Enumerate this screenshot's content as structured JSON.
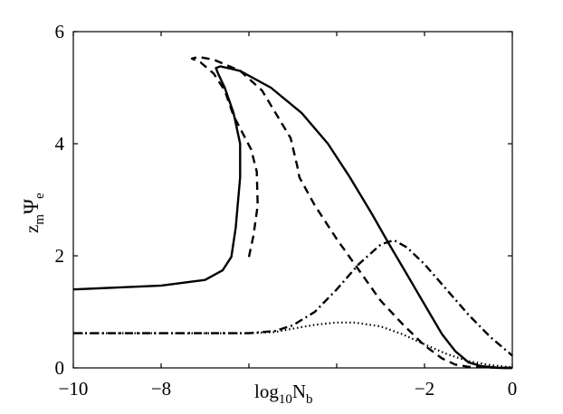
{
  "chart_data": {
    "type": "line",
    "title": "",
    "xlabel": {
      "base": "log",
      "sub1": "10",
      "main": "N",
      "sub2": "b"
    },
    "ylabel": {
      "base": "z",
      "sub1": "m",
      "main": "Ψ",
      "sub2": "e"
    },
    "xlim": [
      -10,
      0
    ],
    "ylim": [
      0,
      6
    ],
    "xticks": [
      {
        "value": -10,
        "label": "−10"
      },
      {
        "value": -8,
        "label": "−8"
      },
      {
        "value": -2,
        "label": "−2"
      },
      {
        "value": 0,
        "label": "0"
      }
    ],
    "yticks": [
      {
        "value": 0,
        "label": "0"
      },
      {
        "value": 2,
        "label": "2"
      },
      {
        "value": 4,
        "label": "4"
      },
      {
        "value": 6,
        "label": "6"
      }
    ],
    "grid": false,
    "legend": "none",
    "series": [
      {
        "style": "solid",
        "x": [
          -10,
          -8,
          -7,
          -6.6,
          -6.4,
          -6.3,
          -6.2,
          -6.2,
          -6.35,
          -6.55,
          -6.7,
          -6.75,
          -6.65,
          -6.2,
          -5.5,
          -4.8,
          -4.2,
          -3.7,
          -3.2,
          -2.8,
          -2.5,
          -2.2,
          -1.9,
          -1.6,
          -1.3,
          -1.0,
          -0.7,
          -0.3,
          0
        ],
        "y": [
          1.4,
          1.47,
          1.57,
          1.74,
          1.98,
          2.5,
          3.4,
          4.0,
          4.55,
          5.0,
          5.25,
          5.35,
          5.38,
          5.3,
          5.0,
          4.55,
          4.0,
          3.4,
          2.75,
          2.2,
          1.8,
          1.4,
          1.0,
          0.6,
          0.3,
          0.1,
          0.03,
          0.0,
          0.0
        ]
      },
      {
        "style": "dashed",
        "x": [
          -6.0,
          -5.9,
          -5.8,
          -5.82,
          -5.95,
          -6.15,
          -6.35,
          -6.55,
          -6.8,
          -7.1,
          -7.3,
          -7.15,
          -6.8,
          -6.2,
          -5.7,
          -5.05,
          -4.9,
          -4.85,
          -4.5,
          -4.0,
          -3.5,
          -3.0,
          -2.5,
          -2.0,
          -1.6,
          -1.3,
          -1.0,
          -0.6,
          -0.3,
          0
        ],
        "y": [
          1.98,
          2.35,
          2.9,
          3.5,
          3.9,
          4.2,
          4.5,
          4.95,
          5.25,
          5.45,
          5.52,
          5.55,
          5.5,
          5.3,
          4.95,
          4.1,
          3.6,
          3.4,
          2.9,
          2.3,
          1.75,
          1.2,
          0.78,
          0.4,
          0.17,
          0.06,
          0.02,
          0.01,
          0.0,
          0.0
        ]
      },
      {
        "style": "dash-dot",
        "x": [
          -10,
          -7,
          -6,
          -5.4,
          -5.0,
          -4.5,
          -4.0,
          -3.5,
          -3.0,
          -2.7,
          -2.4,
          -2.0,
          -1.5,
          -1.0,
          -0.5,
          0
        ],
        "y": [
          0.62,
          0.62,
          0.62,
          0.66,
          0.76,
          1.0,
          1.4,
          1.85,
          2.2,
          2.28,
          2.15,
          1.85,
          1.4,
          0.95,
          0.55,
          0.22
        ]
      },
      {
        "style": "dotted",
        "x": [
          -10,
          -6,
          -5.4,
          -5.0,
          -4.5,
          -4.0,
          -3.6,
          -3.0,
          -2.5,
          -2.0,
          -1.5,
          -1.0,
          -0.5,
          0
        ],
        "y": [
          0.62,
          0.62,
          0.64,
          0.7,
          0.77,
          0.81,
          0.81,
          0.74,
          0.6,
          0.42,
          0.25,
          0.12,
          0.05,
          0.01
        ]
      }
    ]
  }
}
